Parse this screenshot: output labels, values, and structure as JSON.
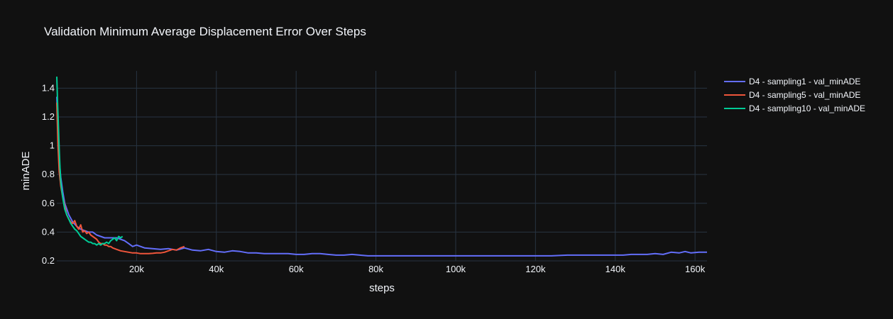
{
  "chart_data": {
    "type": "line",
    "title": "Validation Minimum Average Displacement Error Over Steps",
    "xlabel": "steps",
    "ylabel": "minADE",
    "xlim": [
      0,
      163000
    ],
    "ylim": [
      0.2,
      1.52
    ],
    "x_ticks": [
      {
        "value": 20000,
        "label": "20k"
      },
      {
        "value": 40000,
        "label": "40k"
      },
      {
        "value": 60000,
        "label": "60k"
      },
      {
        "value": 80000,
        "label": "80k"
      },
      {
        "value": 100000,
        "label": "100k"
      },
      {
        "value": 120000,
        "label": "120k"
      },
      {
        "value": 140000,
        "label": "140k"
      },
      {
        "value": 160000,
        "label": "160k"
      }
    ],
    "y_ticks": [
      {
        "value": 0.2,
        "label": "0.2"
      },
      {
        "value": 0.4,
        "label": "0.4"
      },
      {
        "value": 0.6,
        "label": "0.6"
      },
      {
        "value": 0.8,
        "label": "0.8"
      },
      {
        "value": 1.0,
        "label": "1"
      },
      {
        "value": 1.2,
        "label": "1.2"
      },
      {
        "value": 1.4,
        "label": "1.4"
      }
    ],
    "grid": true,
    "legend_position": "top-right",
    "series": [
      {
        "name": "D4 - sampling1 - val_minADE",
        "color": "#636efa",
        "x": [
          0,
          300,
          600,
          1000,
          1500,
          2000,
          3000,
          4000,
          5000,
          6000,
          7000,
          8000,
          9000,
          10000,
          11000,
          12000,
          13000,
          14000,
          15000,
          16000,
          17000,
          18000,
          19000,
          20000,
          22000,
          24000,
          26000,
          28000,
          30000,
          32000,
          34000,
          36000,
          38000,
          40000,
          42000,
          44000,
          46000,
          48000,
          50000,
          52000,
          54000,
          56000,
          58000,
          60000,
          62000,
          64000,
          66000,
          68000,
          70000,
          72000,
          74000,
          76000,
          78000,
          80000,
          84000,
          88000,
          92000,
          96000,
          100000,
          104000,
          108000,
          112000,
          116000,
          120000,
          124000,
          128000,
          130000,
          132000,
          134000,
          136000,
          138000,
          140000,
          142000,
          144000,
          146000,
          148000,
          150000,
          152000,
          154000,
          156000,
          157500,
          159000,
          161000,
          163000
        ],
        "y": [
          1.34,
          1.1,
          0.9,
          0.78,
          0.68,
          0.6,
          0.52,
          0.47,
          0.44,
          0.42,
          0.41,
          0.4,
          0.4,
          0.38,
          0.37,
          0.36,
          0.36,
          0.36,
          0.36,
          0.35,
          0.34,
          0.32,
          0.3,
          0.31,
          0.29,
          0.285,
          0.28,
          0.285,
          0.275,
          0.29,
          0.275,
          0.27,
          0.28,
          0.265,
          0.26,
          0.27,
          0.265,
          0.255,
          0.255,
          0.25,
          0.25,
          0.25,
          0.25,
          0.245,
          0.245,
          0.25,
          0.25,
          0.245,
          0.24,
          0.24,
          0.245,
          0.24,
          0.235,
          0.235,
          0.235,
          0.235,
          0.235,
          0.235,
          0.235,
          0.235,
          0.235,
          0.235,
          0.235,
          0.235,
          0.235,
          0.24,
          0.24,
          0.24,
          0.24,
          0.24,
          0.24,
          0.24,
          0.24,
          0.245,
          0.245,
          0.245,
          0.25,
          0.245,
          0.26,
          0.255,
          0.265,
          0.255,
          0.26,
          0.26
        ]
      },
      {
        "name": "D4 - sampling5 - val_minADE",
        "color": "#ef553b",
        "x": [
          0,
          300,
          600,
          1000,
          1500,
          2000,
          2500,
          3000,
          3500,
          4000,
          4500,
          5000,
          5500,
          6000,
          6500,
          7000,
          7500,
          8000,
          8500,
          9000,
          9500,
          10000,
          10500,
          11000,
          11500,
          12000,
          12500,
          13000,
          13500,
          14000,
          15000,
          16000,
          17000,
          18000,
          19000,
          20000,
          21000,
          22000,
          23000,
          24000,
          25000,
          26000,
          27000,
          28000,
          29000,
          30000,
          31000,
          32000
        ],
        "y": [
          1.3,
          1.0,
          0.82,
          0.72,
          0.64,
          0.58,
          0.52,
          0.49,
          0.47,
          0.46,
          0.48,
          0.44,
          0.42,
          0.45,
          0.4,
          0.41,
          0.39,
          0.4,
          0.38,
          0.37,
          0.36,
          0.35,
          0.33,
          0.32,
          0.32,
          0.31,
          0.31,
          0.3,
          0.3,
          0.29,
          0.28,
          0.27,
          0.265,
          0.26,
          0.255,
          0.255,
          0.25,
          0.25,
          0.25,
          0.252,
          0.255,
          0.255,
          0.26,
          0.27,
          0.28,
          0.275,
          0.29,
          0.3
        ]
      },
      {
        "name": "D4 - sampling10 - val_minADE",
        "color": "#00cc96",
        "x": [
          0,
          200,
          400,
          600,
          800,
          1000,
          1300,
          1600,
          2000,
          2500,
          3000,
          3500,
          4000,
          4500,
          5000,
          5500,
          6000,
          6500,
          7000,
          7500,
          8000,
          8500,
          9000,
          9500,
          10000,
          10500,
          11000,
          11500,
          12000,
          12500,
          13000,
          13500,
          14000,
          14500,
          15000,
          15500,
          16000,
          16500
        ],
        "y": [
          1.48,
          1.3,
          1.15,
          0.98,
          0.85,
          0.75,
          0.68,
          0.62,
          0.56,
          0.52,
          0.49,
          0.46,
          0.44,
          0.42,
          0.41,
          0.39,
          0.37,
          0.36,
          0.35,
          0.34,
          0.33,
          0.33,
          0.32,
          0.32,
          0.31,
          0.32,
          0.31,
          0.32,
          0.32,
          0.33,
          0.32,
          0.34,
          0.35,
          0.36,
          0.34,
          0.37,
          0.36,
          0.37
        ]
      }
    ]
  }
}
